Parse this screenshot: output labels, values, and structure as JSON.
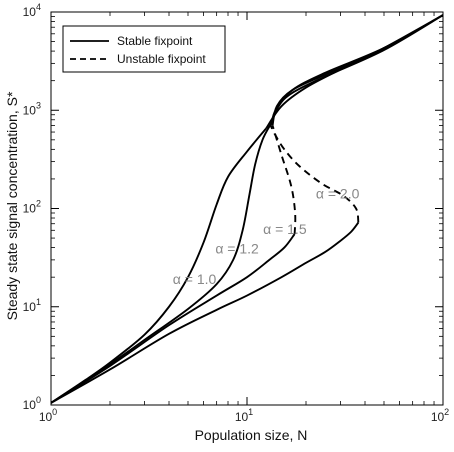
{
  "chart_data": {
    "type": "line",
    "xlabel": "Population size, N",
    "ylabel": "Steady state signal concentration, S*",
    "xscale": "log",
    "yscale": "log",
    "xlim": [
      1,
      100
    ],
    "ylim": [
      1,
      10000
    ],
    "grid": false,
    "legend_position": "top-left",
    "x_ticks": [
      {
        "value": 1,
        "base": "10",
        "exp": "0"
      },
      {
        "value": 10,
        "base": "10",
        "exp": "1"
      },
      {
        "value": 100,
        "base": "10",
        "exp": "2"
      }
    ],
    "y_ticks": [
      {
        "value": 1,
        "base": "10",
        "exp": "0"
      },
      {
        "value": 10,
        "base": "10",
        "exp": "1"
      },
      {
        "value": 100,
        "base": "10",
        "exp": "2"
      },
      {
        "value": 1000,
        "base": "10",
        "exp": "3"
      },
      {
        "value": 10000,
        "base": "10",
        "exp": "4"
      }
    ],
    "legend": [
      {
        "label": "Stable fixpoint",
        "style": "solid"
      },
      {
        "label": "Unstable fixpoint",
        "style": "dashed"
      }
    ],
    "series": [
      {
        "alpha": "1.0",
        "stable_lower": [
          [
            1,
            1.05
          ],
          [
            1.5,
            1.8
          ],
          [
            2,
            2.7
          ],
          [
            3,
            5.2
          ],
          [
            4,
            10
          ],
          [
            5,
            20
          ],
          [
            6,
            45
          ],
          [
            7,
            110
          ],
          [
            8,
            210
          ],
          [
            10,
            380
          ],
          [
            12.5,
            650
          ]
        ],
        "unstable": [],
        "stable_upper": [
          [
            12.5,
            650
          ],
          [
            15,
            1100
          ],
          [
            20,
            1700
          ],
          [
            30,
            2600
          ],
          [
            50,
            4300
          ],
          [
            100,
            9300
          ]
        ]
      },
      {
        "alpha": "1.2",
        "stable_lower": [
          [
            1,
            1.05
          ],
          [
            2,
            2.6
          ],
          [
            3,
            4.6
          ],
          [
            5,
            9.5
          ],
          [
            7,
            17
          ],
          [
            8.5,
            30
          ],
          [
            9.5,
            60
          ],
          [
            10.3,
            140
          ],
          [
            11,
            280
          ],
          [
            12,
            500
          ],
          [
            13.2,
            720
          ]
        ],
        "unstable": [
          [
            13.2,
            720
          ],
          [
            13.4,
            750
          ]
        ],
        "stable_upper": [
          [
            13.4,
            750
          ],
          [
            14,
            1000
          ],
          [
            17,
            1600
          ],
          [
            25,
            2400
          ],
          [
            50,
            4300
          ],
          [
            100,
            9300
          ]
        ]
      },
      {
        "alpha": "1.5",
        "stable_lower": [
          [
            1,
            1.05
          ],
          [
            2,
            2.5
          ],
          [
            4,
            6.5
          ],
          [
            7,
            13
          ],
          [
            10,
            20
          ],
          [
            13,
            30
          ],
          [
            15.5,
            40
          ],
          [
            17.5,
            55
          ]
        ],
        "unstable": [
          [
            17.5,
            55
          ],
          [
            17.6,
            90
          ],
          [
            16.8,
            170
          ],
          [
            15,
            350
          ],
          [
            13.5,
            700
          ]
        ],
        "stable_upper": [
          [
            13.5,
            700
          ],
          [
            14.2,
            1100
          ],
          [
            17,
            1600
          ],
          [
            25,
            2300
          ],
          [
            50,
            4200
          ],
          [
            100,
            9300
          ]
        ]
      },
      {
        "alpha": "2.0",
        "stable_lower": [
          [
            1,
            1.05
          ],
          [
            2,
            2.3
          ],
          [
            4,
            5.3
          ],
          [
            7,
            9.3
          ],
          [
            10,
            13
          ],
          [
            15,
            20
          ],
          [
            20,
            28
          ],
          [
            25,
            36
          ],
          [
            30,
            47
          ],
          [
            34,
            58
          ],
          [
            37,
            72
          ]
        ],
        "unstable": [
          [
            37,
            72
          ],
          [
            36,
            100
          ],
          [
            31,
            135
          ],
          [
            24,
            180
          ],
          [
            18.5,
            270
          ],
          [
            15.5,
            400
          ],
          [
            13.8,
            580
          ],
          [
            13.2,
            700
          ]
        ],
        "stable_upper": [
          [
            13.2,
            700
          ],
          [
            14.5,
            1100
          ],
          [
            17,
            1500
          ],
          [
            25,
            2200
          ],
          [
            50,
            4100
          ],
          [
            100,
            9300
          ]
        ]
      }
    ],
    "annotations": [
      {
        "text": "α = 1.0",
        "x": 5.4,
        "y": 17
      },
      {
        "text": "α = 1.2",
        "x": 8.9,
        "y": 35
      },
      {
        "text": "α = 1.5",
        "x": 15.6,
        "y": 55
      },
      {
        "text": "α = 2.0",
        "x": 29,
        "y": 126
      }
    ]
  }
}
